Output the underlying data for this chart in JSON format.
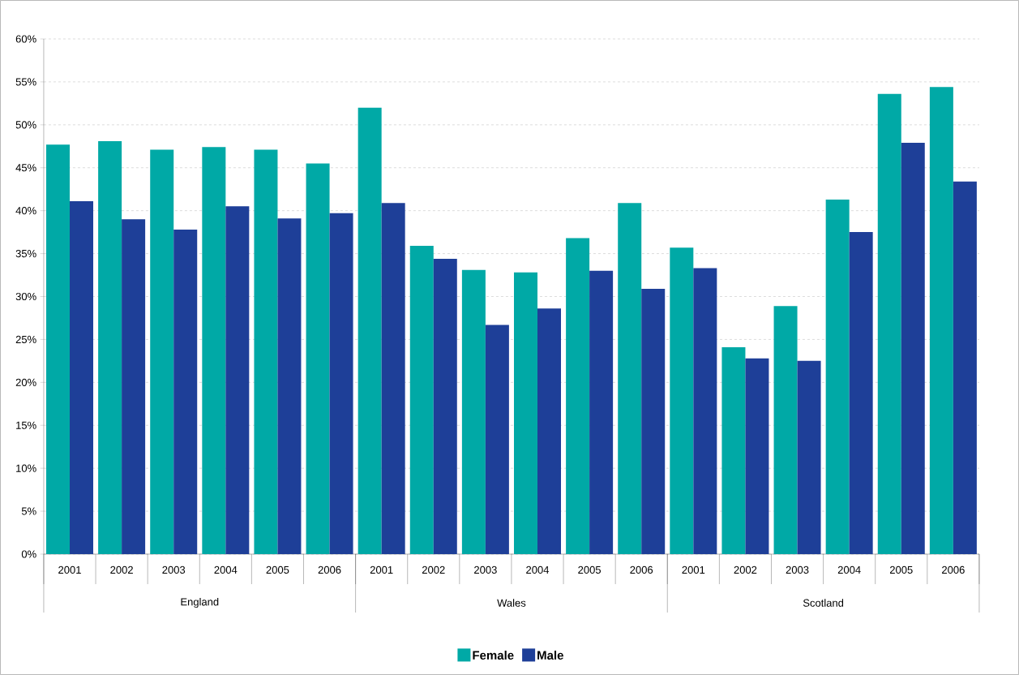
{
  "chart_data": {
    "type": "bar",
    "categories": [
      "2001",
      "2002",
      "2003",
      "2004",
      "2005",
      "2006",
      "2001",
      "2002",
      "2003",
      "2004",
      "2005",
      "2006",
      "2001",
      "2002",
      "2003",
      "2004",
      "2005",
      "2006"
    ],
    "series": [
      {
        "name": "Female",
        "color": "#00a9a6",
        "values": [
          47.7,
          48.1,
          47.1,
          47.4,
          47.1,
          45.5,
          52.0,
          35.9,
          33.1,
          32.8,
          36.8,
          40.9,
          35.7,
          24.1,
          28.9,
          41.3,
          53.6,
          54.4
        ]
      },
      {
        "name": "Male",
        "color": "#1e3f98",
        "values": [
          41.1,
          39.0,
          37.8,
          40.5,
          39.1,
          39.7,
          40.9,
          34.4,
          26.7,
          28.6,
          33.0,
          30.9,
          33.3,
          22.8,
          22.5,
          37.5,
          47.9,
          43.4
        ]
      }
    ],
    "annotations": [
      "England",
      "Wales",
      "Scotland"
    ],
    "ylim": [
      0,
      60
    ],
    "yticks": [
      {
        "value": 0,
        "label": "0%"
      },
      {
        "value": 5,
        "label": "5%"
      },
      {
        "value": 10,
        "label": "10%"
      },
      {
        "value": 15,
        "label": "15%"
      },
      {
        "value": 20,
        "label": "20%"
      },
      {
        "value": 25,
        "label": "25%"
      },
      {
        "value": 30,
        "label": "30%"
      },
      {
        "value": 35,
        "label": "35%"
      },
      {
        "value": 40,
        "label": "40%"
      },
      {
        "value": 45,
        "label": "45%"
      },
      {
        "value": 50,
        "label": "50%"
      },
      {
        "value": 55,
        "label": "55%"
      },
      {
        "value": 60,
        "label": "60%"
      }
    ],
    "grid": "y",
    "legend": "bottom"
  }
}
